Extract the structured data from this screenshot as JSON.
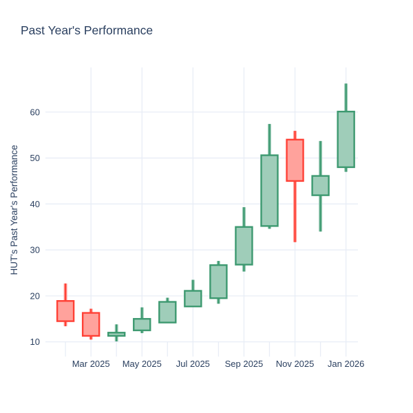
{
  "window": {
    "background": "#FFFFFF"
  },
  "chart_data": {
    "type": "candlestick",
    "title": "Past Year's Performance",
    "xlabel": "",
    "ylabel": "HUT's Past Year's Performance",
    "grid": true,
    "legend": "none",
    "x_tick_labels": [
      "Mar 2025",
      "May 2025",
      "Jul 2025",
      "Sep 2025",
      "Nov 2025",
      "Jan 2026"
    ],
    "x_tick_month_indices": [
      1,
      3,
      5,
      7,
      9,
      11
    ],
    "y_ticks": [
      10,
      20,
      30,
      40,
      50,
      60
    ],
    "ylim": [
      6.8,
      69.7
    ],
    "colors": {
      "increasing_line": "#3D9970",
      "increasing_fill": "#9FCDB9",
      "decreasing_line": "#FF4136",
      "decreasing_fill": "#FFA29C",
      "grid": "#E8EDF6",
      "text": "#2A3F5F",
      "background": "#FFFFFF"
    },
    "candles": [
      {
        "month": "Feb 2025",
        "open": 18.9,
        "high": 22.7,
        "low": 13.4,
        "close": 14.5
      },
      {
        "month": "Mar 2025",
        "open": 16.3,
        "high": 17.2,
        "low": 10.5,
        "close": 11.3
      },
      {
        "month": "Apr 2025",
        "open": 11.3,
        "high": 13.8,
        "low": 10.1,
        "close": 12.0
      },
      {
        "month": "May 2025",
        "open": 12.5,
        "high": 17.5,
        "low": 11.9,
        "close": 15.0
      },
      {
        "month": "Jun 2025",
        "open": 14.2,
        "high": 19.6,
        "low": 14.1,
        "close": 18.7
      },
      {
        "month": "Jul 2025",
        "open": 17.7,
        "high": 23.5,
        "low": 17.6,
        "close": 21.1
      },
      {
        "month": "Aug 2025",
        "open": 19.5,
        "high": 27.6,
        "low": 18.3,
        "close": 26.7
      },
      {
        "month": "Sep 2025",
        "open": 26.8,
        "high": 39.3,
        "low": 25.3,
        "close": 35.0
      },
      {
        "month": "Oct 2025",
        "open": 35.2,
        "high": 57.4,
        "low": 34.6,
        "close": 50.6
      },
      {
        "month": "Nov 2025",
        "open": 54.0,
        "high": 55.9,
        "low": 31.7,
        "close": 45.0
      },
      {
        "month": "Dec 2025",
        "open": 41.9,
        "high": 53.7,
        "low": 34.0,
        "close": 46.1
      },
      {
        "month": "Jan 2026",
        "open": 48.0,
        "high": 66.2,
        "low": 47.0,
        "close": 60.1
      }
    ]
  }
}
